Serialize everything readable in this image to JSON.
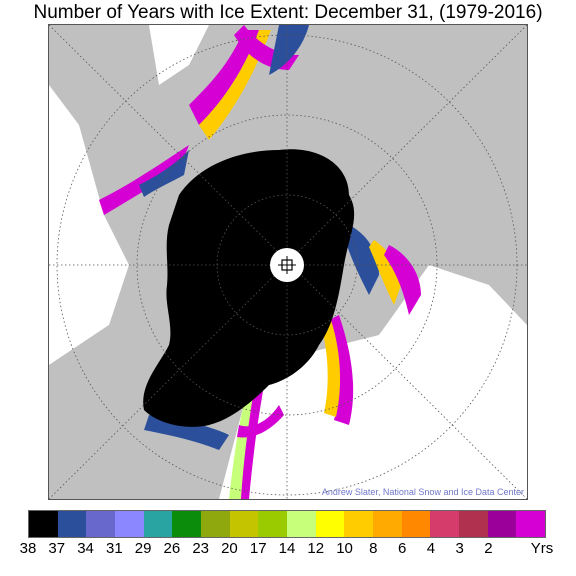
{
  "title": "Number of Years with Ice Extent: December 31, (1979-2016)",
  "credit": "Andrew Slater, National Snow and Ice Data Center",
  "legend": {
    "colors": [
      "#000000",
      "#2b4f9a",
      "#6767cc",
      "#8b88ff",
      "#2aa3a3",
      "#0b8c0b",
      "#8fa80e",
      "#c4c400",
      "#9acb00",
      "#c8ff7a",
      "#ffff00",
      "#ffcc00",
      "#ffaa00",
      "#ff8800",
      "#d63c6b",
      "#b03050",
      "#9b009b",
      "#d400d4"
    ],
    "labels": [
      "38",
      "37",
      "34",
      "31",
      "29",
      "26",
      "23",
      "20",
      "17",
      "14",
      "12",
      "10",
      "8",
      "6",
      "4",
      "3",
      "2"
    ],
    "unit": "Yrs"
  },
  "map": {
    "land_color": "#c0c0c0",
    "ocean_color": "#ffffff",
    "ice_core_color": "#000000",
    "grid_color": "#555555"
  }
}
